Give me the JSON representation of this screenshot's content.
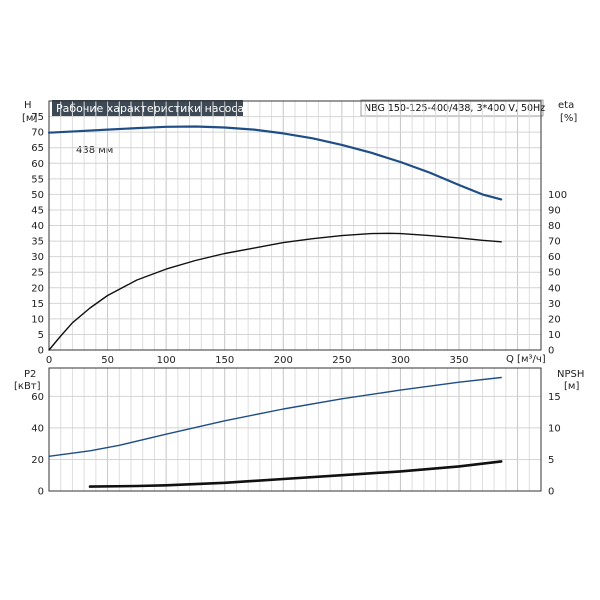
{
  "chart_data": [
    {
      "type": "line",
      "title": "Рабочие характеристики насоса",
      "subtitle": "NBG 150-125-400/438, 3*400 V, 50Hz",
      "xlabel": "Q [м³/ч]",
      "x_ticks": [
        "0",
        "50",
        "100",
        "150",
        "200",
        "250",
        "300",
        "350"
      ],
      "xlim": [
        0,
        420
      ],
      "left_axis": {
        "label_top": "H",
        "label_unit": "[м]",
        "ylim": [
          0,
          80
        ],
        "ticks": [
          "0",
          "5",
          "10",
          "15",
          "20",
          "25",
          "30",
          "35",
          "40",
          "45",
          "50",
          "55",
          "60",
          "65",
          "70",
          "75"
        ]
      },
      "right_axis": {
        "label_top": "eta",
        "label_unit": "[%]",
        "ylim": [
          0,
          160
        ],
        "ticks": [
          "0",
          "10",
          "20",
          "30",
          "40",
          "50",
          "60",
          "70",
          "80",
          "90",
          "100"
        ]
      },
      "grid": true,
      "annotations": [
        "438 мм"
      ],
      "series": [
        {
          "axis": "left",
          "color": "#1f4e87",
          "x": [
            0,
            25,
            50,
            75,
            100,
            125,
            150,
            175,
            200,
            225,
            250,
            275,
            300,
            325,
            350,
            370,
            386
          ],
          "y": [
            69.8,
            70.3,
            70.8,
            71.3,
            71.7,
            71.8,
            71.5,
            70.8,
            69.6,
            68.0,
            65.9,
            63.4,
            60.4,
            57.0,
            53.0,
            50.0,
            48.4
          ]
        },
        {
          "axis": "right",
          "color": "#111111",
          "x": [
            0,
            10,
            20,
            35,
            50,
            75,
            100,
            125,
            150,
            175,
            200,
            225,
            250,
            275,
            290,
            300,
            325,
            350,
            370,
            386
          ],
          "y": [
            0,
            9,
            17.5,
            27,
            35,
            45,
            52,
            57.5,
            62,
            65.5,
            69,
            71.5,
            73.5,
            74.8,
            75,
            74.8,
            73.5,
            72,
            70.5,
            69.5
          ]
        }
      ]
    },
    {
      "type": "line",
      "x_ticks": [],
      "xlim": [
        0,
        420
      ],
      "left_axis": {
        "label_top": "P2",
        "label_unit": "[кВт]",
        "ylim": [
          0,
          78
        ],
        "ticks": [
          "0",
          "20",
          "40",
          "60"
        ]
      },
      "right_axis": {
        "label_top": "NPSH",
        "label_unit": "[м]",
        "ylim": [
          0,
          19.5
        ],
        "ticks": [
          "0",
          "5",
          "10",
          "15"
        ]
      },
      "grid": true,
      "series": [
        {
          "axis": "left",
          "color": "#1f4e87",
          "x": [
            0,
            35,
            60,
            100,
            150,
            200,
            250,
            300,
            350,
            386
          ],
          "y": [
            22,
            25.5,
            29,
            36,
            44.5,
            52,
            58.5,
            64,
            69,
            72
          ]
        },
        {
          "axis": "right",
          "color": "#111111",
          "x": [
            35,
            75,
            100,
            150,
            200,
            250,
            300,
            350,
            386
          ],
          "y": [
            0.7,
            0.8,
            0.9,
            1.3,
            1.9,
            2.5,
            3.1,
            3.9,
            4.7
          ]
        }
      ]
    }
  ]
}
